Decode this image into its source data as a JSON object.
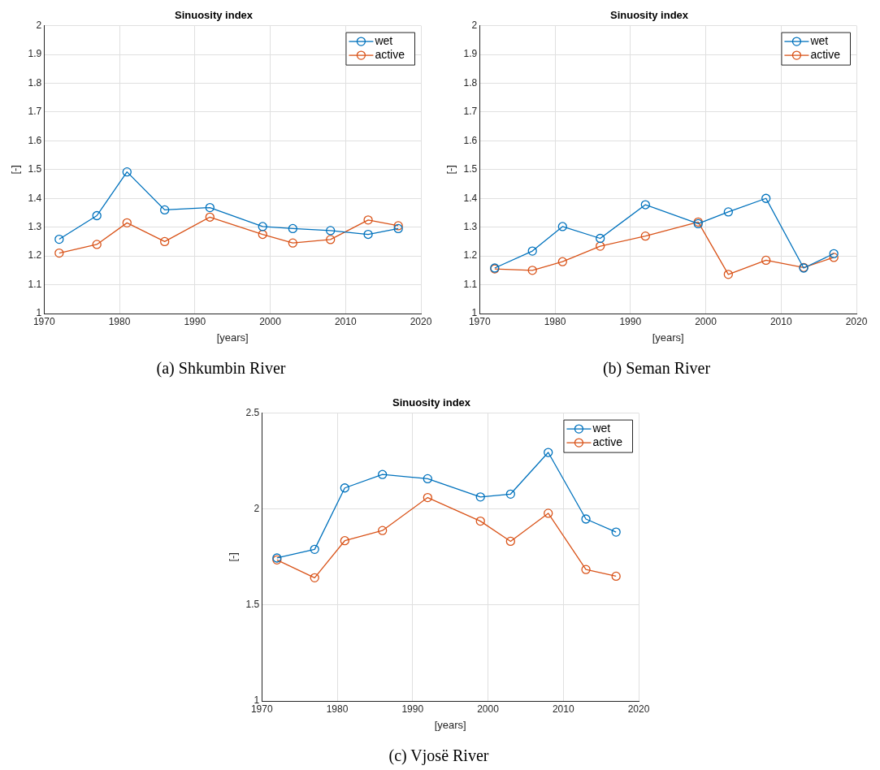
{
  "chart_data": [
    {
      "type": "line",
      "title": "Sinuosity index",
      "xlabel": "[years]",
      "ylabel": "[-]",
      "x": [
        1972,
        1977,
        1981,
        1986,
        1992,
        1999,
        2003,
        2008,
        2013,
        2017
      ],
      "xlim": [
        1970,
        2020
      ],
      "xticks": [
        1970,
        1980,
        1990,
        2000,
        2010,
        2020
      ],
      "ylim": [
        1,
        2
      ],
      "yticks": [
        1,
        1.1,
        1.2,
        1.3,
        1.4,
        1.5,
        1.6,
        1.7,
        1.8,
        1.9,
        2
      ],
      "grid": true,
      "legend": "top right",
      "marker": "circle",
      "line_style": "solid",
      "annotations": [
        "(a) Shkumbin River"
      ],
      "series": [
        {
          "name": "wet",
          "color": "#0072bd",
          "values": [
            1.258,
            1.34,
            1.492,
            1.36,
            1.368,
            1.302,
            1.295,
            1.288,
            1.275,
            1.295
          ]
        },
        {
          "name": "active",
          "color": "#d95319",
          "values": [
            1.21,
            1.24,
            1.315,
            1.25,
            1.335,
            1.275,
            1.245,
            1.257,
            1.325,
            1.305
          ]
        }
      ]
    },
    {
      "type": "line",
      "title": "Sinuosity index",
      "xlabel": "[years]",
      "ylabel": "[-]",
      "x": [
        1972,
        1977,
        1981,
        1986,
        1992,
        1999,
        2003,
        2008,
        2013,
        2017
      ],
      "xlim": [
        1970,
        2020
      ],
      "xticks": [
        1970,
        1980,
        1990,
        2000,
        2010,
        2020
      ],
      "ylim": [
        1,
        2
      ],
      "yticks": [
        1,
        1.1,
        1.2,
        1.3,
        1.4,
        1.5,
        1.6,
        1.7,
        1.8,
        1.9,
        2
      ],
      "grid": true,
      "legend": "top right",
      "marker": "circle",
      "line_style": "solid",
      "annotations": [
        "(b) Seman River"
      ],
      "series": [
        {
          "name": "wet",
          "color": "#0072bd",
          "values": [
            1.158,
            1.217,
            1.302,
            1.261,
            1.378,
            1.312,
            1.353,
            1.4,
            1.158,
            1.208
          ]
        },
        {
          "name": "active",
          "color": "#d95319",
          "values": [
            1.155,
            1.15,
            1.18,
            1.234,
            1.269,
            1.318,
            1.136,
            1.185,
            1.16,
            1.195
          ]
        }
      ]
    },
    {
      "type": "line",
      "title": "Sinuosity index",
      "xlabel": "[years]",
      "ylabel": "[-]",
      "x": [
        1972,
        1977,
        1981,
        1986,
        1992,
        1999,
        2003,
        2008,
        2013,
        2017
      ],
      "xlim": [
        1970,
        2020
      ],
      "xticks": [
        1970,
        1980,
        1990,
        2000,
        2010,
        2020
      ],
      "ylim": [
        1,
        2.5
      ],
      "yticks": [
        1,
        1.5,
        2,
        2.5
      ],
      "grid": true,
      "legend": "top right",
      "marker": "circle",
      "line_style": "solid",
      "annotations": [
        "(c) Vjosë River"
      ],
      "series": [
        {
          "name": "wet",
          "color": "#0072bd",
          "values": [
            1.745,
            1.79,
            2.11,
            2.18,
            2.158,
            2.063,
            2.078,
            2.295,
            1.948,
            1.88
          ]
        },
        {
          "name": "active",
          "color": "#d95319",
          "values": [
            1.735,
            1.642,
            1.835,
            1.888,
            2.06,
            1.937,
            1.832,
            1.978,
            1.685,
            1.65
          ]
        }
      ]
    }
  ]
}
